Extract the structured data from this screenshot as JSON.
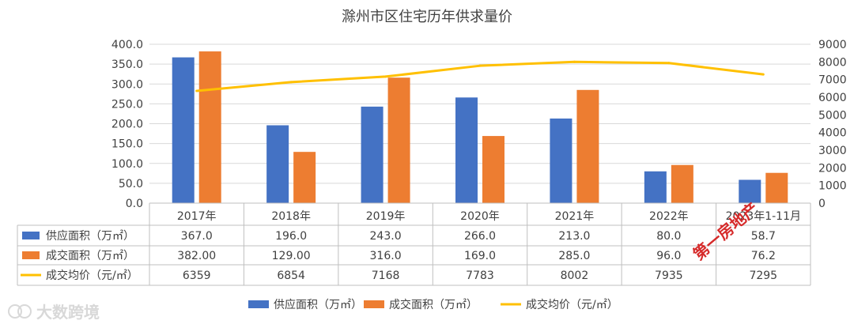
{
  "chart_data": {
    "type": "bar+line",
    "title": "滁州市区住宅历年供求量价",
    "categories": [
      "2017年",
      "2018年",
      "2019年",
      "2020年",
      "2021年",
      "2022年",
      "2023年1-11月"
    ],
    "left_axis": {
      "min": 0,
      "max": 400,
      "step": 50,
      "tick_labels": [
        "0.0",
        "50.0",
        "100.0",
        "150.0",
        "200.0",
        "250.0",
        "300.0",
        "350.0",
        "400.0"
      ]
    },
    "right_axis": {
      "min": 0,
      "max": 9000,
      "step": 1000,
      "tick_labels": [
        "0",
        "1000",
        "2000",
        "3000",
        "4000",
        "5000",
        "6000",
        "7000",
        "8000",
        "9000"
      ]
    },
    "grid": true,
    "legend_position": "bottom",
    "series": [
      {
        "name": "供应面积（万㎡）",
        "type": "bar",
        "axis": "left",
        "color": "#4472C4",
        "values": [
          367.0,
          196.0,
          243.0,
          266.0,
          213.0,
          80.0,
          58.7
        ],
        "table_values": [
          "367.0",
          "196.0",
          "243.0",
          "266.0",
          "213.0",
          "80.0",
          "58.7"
        ]
      },
      {
        "name": "成交面积（万㎡）",
        "type": "bar",
        "axis": "left",
        "color": "#ED7D31",
        "values": [
          382.0,
          129.0,
          316.0,
          169.0,
          285.0,
          96.0,
          76.2
        ],
        "table_values": [
          "382.00",
          "129.00",
          "316.0",
          "169.0",
          "285.0",
          "96.0",
          "76.2"
        ]
      },
      {
        "name": "成交均价（元/㎡）",
        "type": "line",
        "axis": "right",
        "color": "#FFC000",
        "values": [
          6359,
          6854,
          7168,
          7783,
          8002,
          7935,
          7295
        ],
        "table_values": [
          "6359",
          "6854",
          "7168",
          "7783",
          "8002",
          "7935",
          "7295"
        ]
      }
    ]
  },
  "watermark": {
    "text": "大数跨境"
  },
  "stamp": {
    "text": "第一房地产"
  }
}
